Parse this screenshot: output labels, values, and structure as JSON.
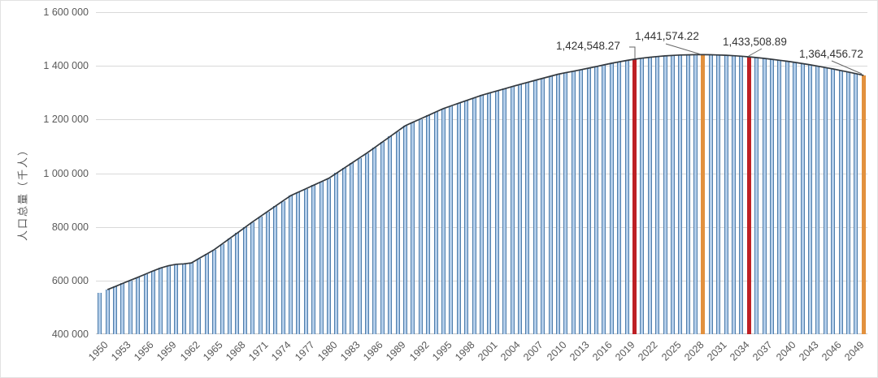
{
  "y_axis": {
    "title": "人口总量（千人）",
    "tick_labels": [
      "1 600 000",
      "1 400 000",
      "1 200 000",
      "1 000 000",
      "800 000",
      "600 000",
      "400 000"
    ]
  },
  "x_axis": {
    "tick_labels": [
      1950,
      1953,
      1956,
      1959,
      1962,
      1965,
      1968,
      1971,
      1974,
      1977,
      1980,
      1983,
      1986,
      1989,
      1992,
      1995,
      1998,
      2001,
      2004,
      2007,
      2010,
      2013,
      2016,
      2019,
      2022,
      2025,
      2028,
      2031,
      2034,
      2037,
      2040,
      2043,
      2046,
      2049
    ]
  },
  "colors": {
    "bar_fill": "#b3cde9",
    "bar_edge": "#4c7cab",
    "bar_red": "#be2025",
    "bar_orange": "#e2913e",
    "line": "#33393f",
    "grid": "#d9d9d9",
    "tick_text": "#595959",
    "label_text": "#333333",
    "leader": "#666666"
  },
  "chart_data": {
    "type": "bar",
    "title": "",
    "xlabel": "",
    "ylabel": "人口总量（千人）",
    "ylim": [
      400000,
      1600000
    ],
    "grid": true,
    "legend": "none",
    "years_start": 1950,
    "years_end": 2050,
    "x_tick_interval": 3,
    "values": [
      554419,
      565983,
      577548,
      589112,
      600677,
      612241,
      624000,
      636000,
      647000,
      655000,
      660408,
      662100,
      665770,
      682335,
      698355,
      715185,
      735811,
      756437,
      777063,
      797689,
      818315,
      837931,
      857547,
      877163,
      896779,
      916395,
      929363,
      942331,
      955299,
      968267,
      981235,
      1000106,
      1018977,
      1037847,
      1056718,
      1075589,
      1095848,
      1116107,
      1136366,
      1156625,
      1176884,
      1189691,
      1202499,
      1215306,
      1228114,
      1240921,
      1250847,
      1260773,
      1270699,
      1280625,
      1290551,
      1298596,
      1306641,
      1314686,
      1322731,
      1330776,
      1338383,
      1345990,
      1353597,
      1361204,
      1368811,
      1374455,
      1380099,
      1385742,
      1391386,
      1397029,
      1403500,
      1409517,
      1415046,
      1420062,
      1424548.27,
      1428480,
      1431900,
      1434780,
      1437150,
      1439040,
      1440480,
      1441090,
      1441480,
      1441574.22,
      1441240,
      1440540,
      1439400,
      1437810,
      1435840,
      1433508.89,
      1430830,
      1427830,
      1424510,
      1420890,
      1417000,
      1412830,
      1408400,
      1403720,
      1398800,
      1393650,
      1388280,
      1382690,
      1376880,
      1370810,
      1364456.72
    ],
    "line_series": {
      "name": "population-trend-line",
      "starts_at_year": 1951,
      "follows": "values"
    },
    "highlighted_bars": [
      {
        "year": 2020,
        "color_key": "bar_red",
        "label": "1,424,548.27"
      },
      {
        "year": 2029,
        "color_key": "bar_orange",
        "label": "1,441,574.22"
      },
      {
        "year": 2035,
        "color_key": "bar_red",
        "label": "1,433,508.89"
      },
      {
        "year": 2050,
        "color_key": "bar_orange",
        "label": "1,364,456.72"
      }
    ]
  }
}
